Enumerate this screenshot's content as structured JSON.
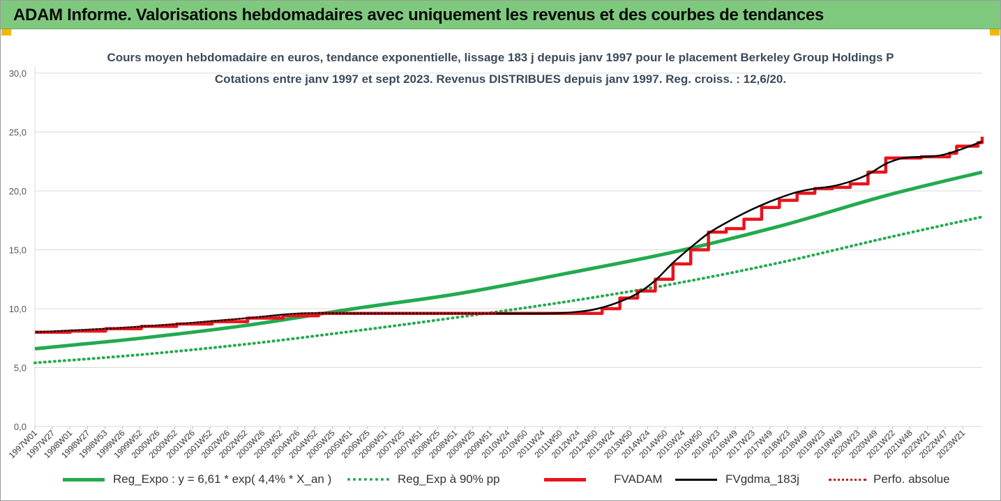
{
  "banner": {
    "title": "ADAM Informe. Valorisations hebdomadaires avec uniquement les revenus et des courbes de tendances"
  },
  "colors": {
    "banner_bg": "#7fc97f",
    "corner": "#f2b800",
    "reg_expo": "#22aa4f",
    "reg_exp90": "#22aa4f",
    "fvadam": "#e8141b",
    "fvgdma": "#000000",
    "perfo": "#c8141b",
    "title_text": "#3b4a5a"
  },
  "chart_data": {
    "type": "line",
    "title_line1": "Cours moyen hebdomadaire en euros, tendance exponentielle, lissage 183 j depuis janv 1997 pour le placement Berkeley Group Holdings P",
    "title_line2": "Cotations entre janv 1997 et sept 2023. Revenus DISTRIBUES depuis janv 1997. Reg. croiss. : 12,6/20.",
    "ylim": [
      0,
      30
    ],
    "y_ticks": [
      "0,0",
      "5,0",
      "10,0",
      "15,0",
      "20,0",
      "25,0",
      "30,0"
    ],
    "grid": "horizontal",
    "legend_position": "bottom",
    "x_range": [
      1997.0,
      2023.72
    ],
    "x_tick_labels": [
      "1997W01",
      "1997W27",
      "1998W01",
      "1998W27",
      "1998W53",
      "1999W26",
      "1999W52",
      "2000W26",
      "2000W52",
      "2001W26",
      "2001W52",
      "2002W26",
      "2002W52",
      "2003W26",
      "2003W52",
      "2004W26",
      "2004W52",
      "2005W25",
      "2005W51",
      "2006W25",
      "2006W51",
      "2007W25",
      "2007W51",
      "2008W25",
      "2008W51",
      "2009W25",
      "2009W51",
      "2010W24",
      "2010W50",
      "2011W24",
      "2011W50",
      "2012W24",
      "2012W50",
      "2013W24",
      "2013W50",
      "2014W24",
      "2014W50",
      "2015W24",
      "2015W50",
      "2016W23",
      "2016W49",
      "2017W23",
      "2017W49",
      "2018W23",
      "2018W49",
      "2019W23",
      "2019W49",
      "2020W23",
      "2020W49",
      "2021W22",
      "2021W48",
      "2022W21",
      "2022W47",
      "2023W21"
    ],
    "series": [
      {
        "name": "Reg_Expo : y = 6,61 * exp( 4,4% * X_an )",
        "key": "reg_expo",
        "style": "solid-thick",
        "x": [
          1997.0,
          2000.0,
          2003.0,
          2006.0,
          2009.0,
          2012.0,
          2015.0,
          2018.0,
          2021.0,
          2023.72
        ],
        "values": [
          6.6,
          7.5,
          8.6,
          10.0,
          11.3,
          13.0,
          14.8,
          17.0,
          19.6,
          21.6
        ]
      },
      {
        "name": "Reg_Exp à 90% pp",
        "key": "reg_exp90",
        "style": "dotted",
        "x": [
          1997.0,
          2000.0,
          2003.0,
          2006.0,
          2009.0,
          2012.0,
          2015.0,
          2018.0,
          2021.0,
          2023.72
        ],
        "values": [
          5.4,
          6.1,
          7.0,
          8.1,
          9.3,
          10.6,
          12.1,
          13.9,
          16.0,
          17.8
        ]
      },
      {
        "name": "FVADAM",
        "key": "fvadam",
        "style": "steps",
        "x": [
          1997.0,
          1998.0,
          1999.0,
          2000.0,
          2001.0,
          2002.0,
          2003.0,
          2004.0,
          2005.0,
          2012.5,
          2013.0,
          2013.5,
          2014.0,
          2014.5,
          2015.0,
          2015.5,
          2016.0,
          2016.5,
          2017.0,
          2017.5,
          2018.0,
          2018.5,
          2019.0,
          2019.5,
          2020.0,
          2020.5,
          2021.0,
          2022.0,
          2022.8,
          2023.0,
          2023.6,
          2023.72
        ],
        "values": [
          8.0,
          8.1,
          8.3,
          8.5,
          8.7,
          8.9,
          9.2,
          9.4,
          9.6,
          9.6,
          10.0,
          10.9,
          11.5,
          12.5,
          13.8,
          15.0,
          16.5,
          16.8,
          17.6,
          18.6,
          19.2,
          19.8,
          20.2,
          20.3,
          20.6,
          21.6,
          22.8,
          22.9,
          23.2,
          23.8,
          24.1,
          24.6
        ]
      },
      {
        "name": "FVgdma_183j",
        "key": "fvgdma",
        "style": "solid",
        "x": [
          1997.0,
          1999.0,
          2001.0,
          2003.0,
          2004.5,
          2006.0,
          2009.0,
          2011.5,
          2012.5,
          2013.0,
          2013.5,
          2014.0,
          2014.5,
          2015.0,
          2015.5,
          2016.0,
          2016.5,
          2017.0,
          2017.5,
          2018.0,
          2018.5,
          2019.0,
          2019.5,
          2020.0,
          2020.5,
          2021.0,
          2021.5,
          2022.0,
          2022.5,
          2023.0,
          2023.72
        ],
        "values": [
          8.0,
          8.3,
          8.7,
          9.2,
          9.6,
          9.6,
          9.6,
          9.6,
          9.8,
          10.1,
          10.6,
          11.3,
          12.4,
          13.9,
          15.2,
          16.4,
          17.3,
          18.1,
          18.8,
          19.4,
          19.9,
          20.2,
          20.4,
          20.8,
          21.4,
          22.3,
          22.8,
          22.9,
          23.0,
          23.4,
          24.2
        ]
      },
      {
        "name": "Perfo. absolue",
        "key": "perfo",
        "style": "dotted",
        "x": [
          1997.0,
          1998.0,
          1999.0,
          2000.0,
          2001.0,
          2002.0,
          2003.0,
          2004.0,
          2005.0,
          2010.0
        ],
        "values": [
          8.0,
          8.1,
          8.3,
          8.5,
          8.7,
          8.9,
          9.2,
          9.4,
          9.6,
          9.6
        ]
      }
    ]
  }
}
